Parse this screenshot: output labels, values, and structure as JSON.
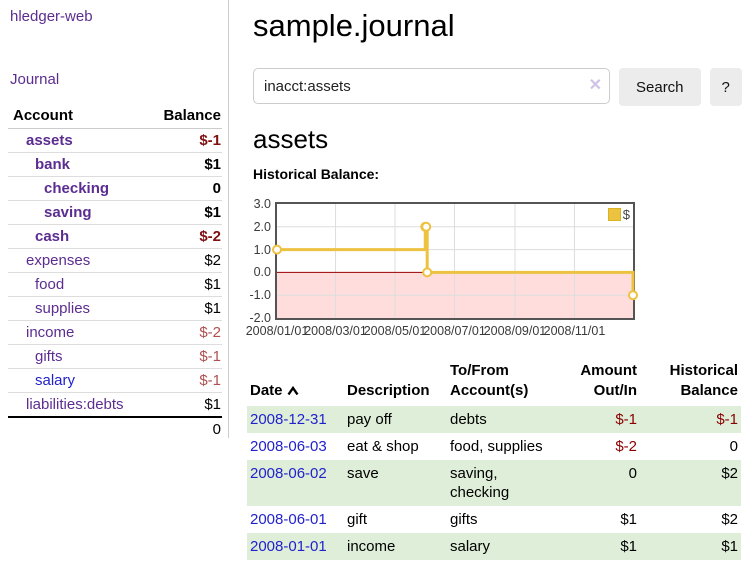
{
  "sidebar": {
    "app_title": "hledger-web",
    "journal_link": "Journal",
    "accounts": {
      "headers": {
        "account": "Account",
        "balance": "Balance"
      },
      "rows": [
        {
          "name": "assets",
          "indent": 1,
          "bold": true,
          "balance": "$-1",
          "neg": true,
          "blue": false
        },
        {
          "name": "bank",
          "indent": 2,
          "bold": true,
          "balance": "$1",
          "neg": false,
          "blue": false
        },
        {
          "name": "checking",
          "indent": 3,
          "bold": true,
          "balance": "0",
          "neg": false,
          "blue": false
        },
        {
          "name": "saving",
          "indent": 3,
          "bold": true,
          "balance": "$1",
          "neg": false,
          "blue": false
        },
        {
          "name": "cash",
          "indent": 2,
          "bold": true,
          "balance": "$-2",
          "neg": true,
          "blue": false
        },
        {
          "name": "expenses",
          "indent": 1,
          "bold": false,
          "balance": "$2",
          "neg": false,
          "blue": false
        },
        {
          "name": "food",
          "indent": 2,
          "bold": false,
          "balance": "$1",
          "neg": false,
          "blue": false
        },
        {
          "name": "supplies",
          "indent": 2,
          "bold": false,
          "balance": "$1",
          "neg": false,
          "blue": false
        },
        {
          "name": "income",
          "indent": 1,
          "bold": false,
          "balance": "$-2",
          "neg": true,
          "blue": false
        },
        {
          "name": "gifts",
          "indent": 2,
          "bold": false,
          "balance": "$-1",
          "neg": true,
          "blue": false
        },
        {
          "name": "salary",
          "indent": 2,
          "bold": false,
          "balance": "$-1",
          "neg": true,
          "blue": true
        },
        {
          "name": "liabilities:debts",
          "indent": 1,
          "bold": false,
          "balance": "$1",
          "neg": false,
          "blue": false
        }
      ],
      "total": "0"
    }
  },
  "main": {
    "title": "sample.journal",
    "search": {
      "value": "inacct:assets",
      "clear_icon": "✕",
      "search_button": "Search",
      "help_button": "?"
    },
    "account_heading": "assets",
    "chart_title": "Historical Balance:"
  },
  "chart_data": {
    "type": "line",
    "step": true,
    "title": "Historical Balance:",
    "series": [
      {
        "name": "$",
        "color": "#edc240",
        "points": [
          [
            "2008-01-01",
            1
          ],
          [
            "2008-06-01",
            2
          ],
          [
            "2008-06-02",
            2
          ],
          [
            "2008-06-03",
            0
          ],
          [
            "2008-12-31",
            -1
          ]
        ]
      }
    ],
    "xrange": [
      "2008-01-01",
      "2008-12-31"
    ],
    "ylim": [
      -2,
      3
    ],
    "yticks": [
      {
        "label": "3.0",
        "v": 3
      },
      {
        "label": "2.0",
        "v": 2
      },
      {
        "label": "1.0",
        "v": 1
      },
      {
        "label": "0.0",
        "v": 0
      },
      {
        "label": "-1.0",
        "v": -1
      },
      {
        "label": "-2.0",
        "v": -2
      }
    ],
    "xticks": [
      {
        "label": "2008/01/01",
        "date": "2008-01-01"
      },
      {
        "label": "2008/03/01",
        "date": "2008-03-01"
      },
      {
        "label": "2008/05/01",
        "date": "2008-05-01"
      },
      {
        "label": "2008/07/01",
        "date": "2008-07-01"
      },
      {
        "label": "2008/09/01",
        "date": "2008-09-01"
      },
      {
        "label": "2008/11/01",
        "date": "2008-11-01"
      }
    ],
    "grid": true,
    "negative_region_color": "#ffdddd",
    "zero_line_color": "#990000",
    "legend_position": "top-right",
    "legend_label": "$"
  },
  "register": {
    "headers": {
      "date": "Date",
      "description": "Description",
      "accounts": [
        "To/From",
        "Account(s)"
      ],
      "amount": [
        "Amount",
        "Out/In"
      ],
      "balance": [
        "Historical",
        "Balance"
      ]
    },
    "rows": [
      {
        "date": "2008-12-31",
        "description": "pay off",
        "accounts": "debts",
        "amount": "$-1",
        "amount_neg": true,
        "balance": "$-1",
        "balance_neg": true
      },
      {
        "date": "2008-06-03",
        "description": "eat & shop",
        "accounts": "food, supplies",
        "amount": "$-2",
        "amount_neg": true,
        "balance": "0",
        "balance_neg": false
      },
      {
        "date": "2008-06-02",
        "description": "save",
        "accounts": "saving, checking",
        "amount": "0",
        "amount_neg": false,
        "balance": "$2",
        "balance_neg": false
      },
      {
        "date": "2008-06-01",
        "description": "gift",
        "accounts": "gifts",
        "amount": "$1",
        "amount_neg": false,
        "balance": "$2",
        "balance_neg": false
      },
      {
        "date": "2008-01-01",
        "description": "income",
        "accounts": "salary",
        "amount": "$1",
        "amount_neg": false,
        "balance": "$1",
        "balance_neg": false
      }
    ]
  },
  "colors": {
    "link_purple": "#5c2d91",
    "link_blue": "#2222cc",
    "negative_bold": "#7f1010",
    "negative_light": "#b05050",
    "negative_table": "#8b0000",
    "row_green": "#dfeed9",
    "series_gold": "#edc240",
    "negative_region": "#ffdddd",
    "zero_line": "#990000",
    "chart_border": "#545454"
  }
}
